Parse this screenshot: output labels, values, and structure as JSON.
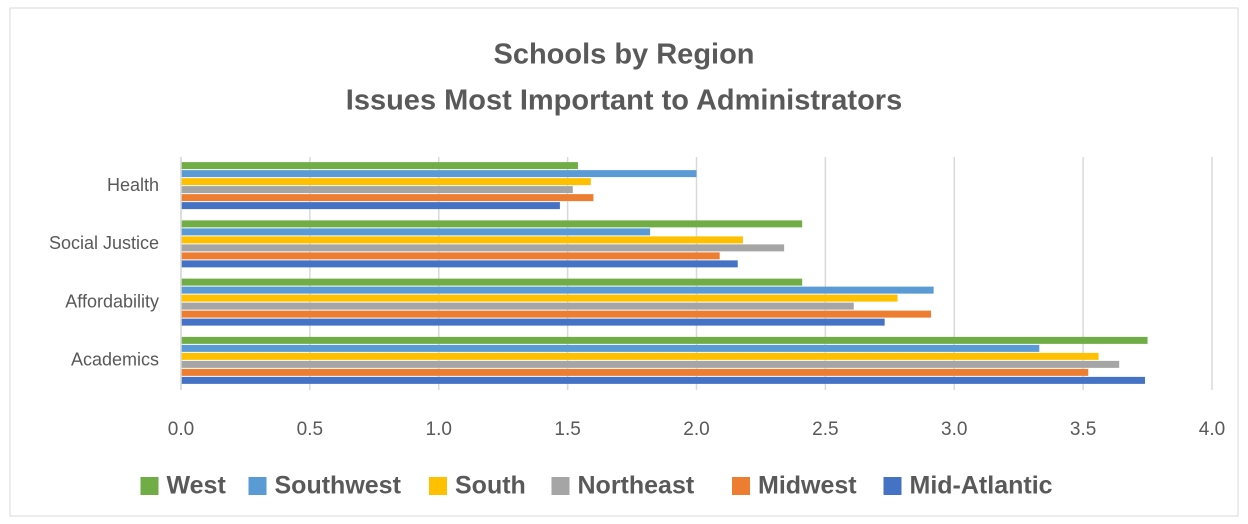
{
  "chart_data": {
    "type": "barh",
    "title_lines": [
      "Schools by Region",
      "Issues Most Important to Administrators"
    ],
    "categories": [
      "Academics",
      "Affordability",
      "Social Justice",
      "Health"
    ],
    "series": [
      {
        "name": "West",
        "color": "#70ad47",
        "values": [
          3.75,
          2.41,
          2.41,
          1.54
        ]
      },
      {
        "name": "Southwest",
        "color": "#5b9bd5",
        "values": [
          3.33,
          2.92,
          1.82,
          2.0
        ]
      },
      {
        "name": "South",
        "color": "#ffc000",
        "values": [
          3.56,
          2.78,
          2.18,
          1.59
        ]
      },
      {
        "name": "Northeast",
        "color": "#a5a5a5",
        "values": [
          3.64,
          2.61,
          2.34,
          1.52
        ]
      },
      {
        "name": "Midwest",
        "color": "#ed7d31",
        "values": [
          3.52,
          2.91,
          2.09,
          1.6
        ]
      },
      {
        "name": "Mid-Atlantic",
        "color": "#4472c4",
        "values": [
          3.74,
          2.73,
          2.16,
          1.47
        ]
      }
    ],
    "xlim": [
      0,
      4
    ],
    "xticks": [
      {
        "value": 0,
        "label": "0.0"
      },
      0.5,
      {
        "value": 1,
        "label": "1.0"
      },
      1.5,
      {
        "value": 2,
        "label": "2.0"
      },
      2.5,
      {
        "value": 3,
        "label": "3.0"
      },
      3.5,
      {
        "value": 4,
        "label": "4.0"
      }
    ],
    "grid": true,
    "legend": "bottom"
  }
}
